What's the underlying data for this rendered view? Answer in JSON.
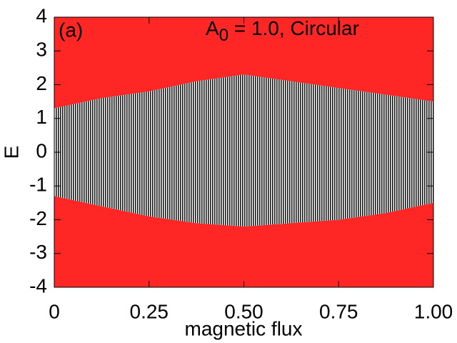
{
  "chart_data": {
    "type": "band",
    "xlabel": "magnetic flux",
    "ylabel": "E",
    "annotations": [
      {
        "text": "(a)",
        "color": "#0000ff"
      },
      {
        "text": "A",
        "subscript": "0",
        "rest": " = 1.0, Circular",
        "color": "#0000ff"
      }
    ],
    "x": [
      0,
      0.125,
      0.25,
      0.375,
      0.5,
      0.625,
      0.75,
      0.875,
      1.0
    ],
    "series": [
      {
        "color": "#ff0000",
        "upper": [
          4,
          4,
          4,
          4,
          4,
          4,
          4,
          4,
          4
        ],
        "lower": [
          1.3,
          1.6,
          1.8,
          2.1,
          2.3,
          2.1,
          1.9,
          1.7,
          1.5
        ]
      },
      {
        "color": "#ff0000",
        "upper": [
          -1.3,
          -1.6,
          -1.9,
          -2.1,
          -2.2,
          -2.1,
          -2.0,
          -1.8,
          -1.5
        ],
        "lower": [
          -4,
          -4,
          -4,
          -4,
          -4,
          -4,
          -4,
          -4,
          -4
        ]
      },
      {
        "color": "#000000",
        "upper": [
          1.3,
          1.6,
          1.8,
          2.1,
          2.3,
          2.1,
          1.9,
          1.7,
          1.5
        ],
        "lower": [
          -1.3,
          -1.6,
          -1.9,
          -2.1,
          -2.2,
          -2.1,
          -2.0,
          -1.8,
          -1.5
        ]
      }
    ],
    "xlim": [
      0,
      1.0
    ],
    "ylim": [
      -4,
      4
    ],
    "xticks": [
      0,
      0.25,
      {
        "value": 0.5,
        "label": "0.50"
      },
      0.75,
      {
        "value": 1.0,
        "label": "1.00"
      }
    ],
    "yticks": [
      -4,
      -3,
      -2,
      -1,
      0,
      1,
      2,
      3,
      4
    ]
  }
}
